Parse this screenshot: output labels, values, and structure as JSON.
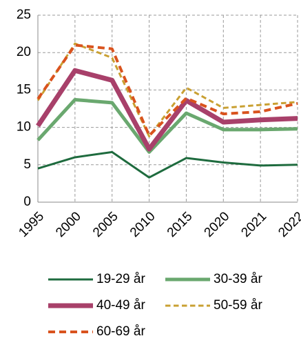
{
  "chart_data": {
    "type": "line",
    "categories": [
      "1995",
      "2000",
      "2005",
      "2010",
      "2015",
      "2020",
      "2021",
      "2022"
    ],
    "ylim": [
      0,
      25
    ],
    "yticks": [
      0,
      5,
      10,
      15,
      20,
      25
    ],
    "grid": true,
    "legend": "bottom",
    "series": [
      {
        "name": "19-29 år",
        "color": "#1e6b3e",
        "linewidth": 3,
        "dashed": false,
        "values": [
          4.5,
          6.0,
          6.7,
          3.3,
          5.9,
          5.3,
          4.9,
          5.0
        ]
      },
      {
        "name": "30-39 år",
        "color": "#6aa86f",
        "linewidth": 5,
        "dashed": false,
        "values": [
          8.3,
          13.7,
          13.3,
          6.7,
          11.9,
          9.7,
          9.7,
          9.8
        ]
      },
      {
        "name": "40-49 år",
        "color": "#a8406a",
        "linewidth": 7,
        "dashed": false,
        "values": [
          10.2,
          17.6,
          16.3,
          7.1,
          13.6,
          10.7,
          11.0,
          11.2
        ]
      },
      {
        "name": "50-59 år",
        "color": "#c9a032",
        "linewidth": 3,
        "dashed": true,
        "values": [
          13.6,
          21.2,
          19.3,
          8.8,
          15.3,
          12.6,
          13.0,
          13.4
        ]
      },
      {
        "name": "60-69 år",
        "color": "#d9531e",
        "linewidth": 4,
        "dashed": true,
        "values": [
          13.8,
          21.0,
          20.5,
          8.9,
          13.9,
          11.8,
          12.1,
          13.2
        ]
      }
    ]
  }
}
